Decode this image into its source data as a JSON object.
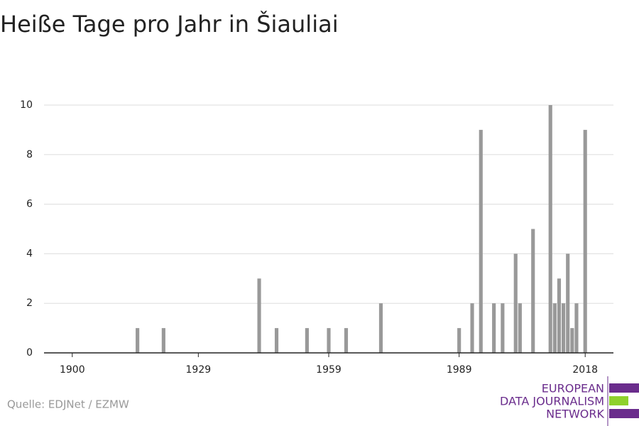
{
  "chart_data": {
    "type": "bar",
    "title": "Heiße Tage pro Jahr in Šiauliai",
    "source": "Quelle: EDJNet / EZMW",
    "logo": [
      "EUROPEAN",
      "DATA JOURNALISM",
      "NETWORK"
    ],
    "x": [
      1915,
      1921,
      1943,
      1947,
      1954,
      1959,
      1963,
      1971,
      1989,
      1992,
      1994,
      1997,
      1999,
      2002,
      2003,
      2006,
      2010,
      2011,
      2012,
      2013,
      2014,
      2015,
      2016,
      2018
    ],
    "values": [
      1,
      1,
      3,
      1,
      1,
      1,
      1,
      2,
      1,
      2,
      9,
      2,
      2,
      4,
      2,
      5,
      10,
      2,
      3,
      2,
      4,
      1,
      2,
      9
    ],
    "color": "#999999",
    "xlim": [
      1893.5,
      2024.5
    ],
    "xticks": [
      1900,
      1929,
      1959,
      1989,
      2018
    ],
    "ylim": [
      0,
      10
    ],
    "yticks": [
      0,
      2,
      4,
      6,
      8,
      10
    ],
    "grid": true
  }
}
